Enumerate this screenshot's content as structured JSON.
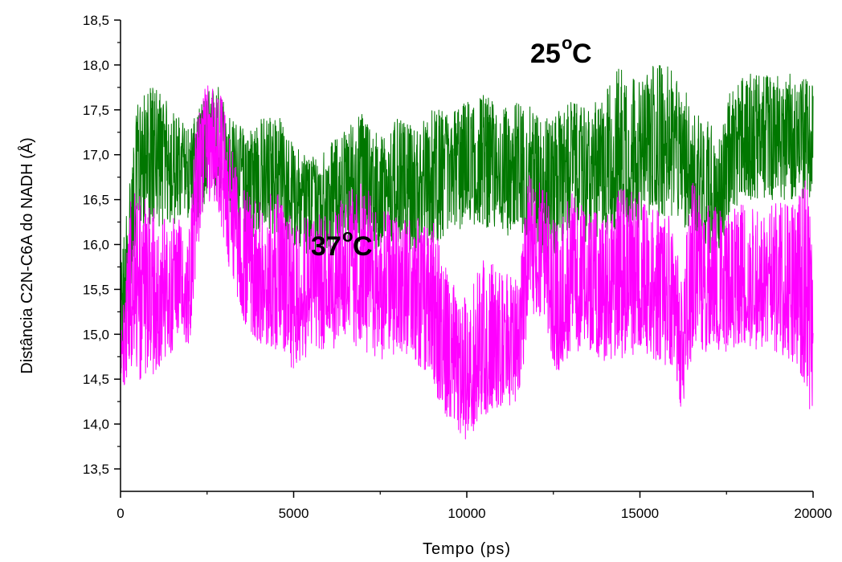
{
  "chart_data": {
    "type": "line",
    "xlabel": "Tempo (ps)",
    "ylabel": "Distância C2N-C6A do NADH (Å)",
    "xlim": [
      0,
      20000
    ],
    "ylim": [
      13.25,
      18.5
    ],
    "x_ticks": [
      0,
      5000,
      10000,
      15000,
      20000
    ],
    "x_tick_labels": [
      "0",
      "5000",
      "10000",
      "15000",
      "20000"
    ],
    "y_ticks": [
      13.5,
      14.0,
      14.5,
      15.0,
      15.5,
      16.0,
      16.5,
      17.0,
      17.5,
      18.0,
      18.5
    ],
    "y_tick_labels": [
      "13,5",
      "14,0",
      "14,5",
      "15,0",
      "15,5",
      "16,0",
      "16,5",
      "17,0",
      "17,5",
      "18,0",
      "18,5"
    ],
    "grid": false,
    "legend": "none",
    "annotations": [
      {
        "text": "25",
        "sup": "o",
        "unit": "C",
        "series": "25°C"
      },
      {
        "text": "37",
        "sup": "o",
        "unit": "C",
        "series": "37°C"
      }
    ],
    "series": [
      {
        "name": "25°C",
        "color": "#007700",
        "x": [
          0,
          500,
          1000,
          1500,
          2000,
          2500,
          2800,
          3200,
          3600,
          4000,
          4500,
          5000,
          5500,
          6000,
          6500,
          7000,
          7500,
          8000,
          8500,
          9000,
          9500,
          10000,
          10500,
          11000,
          11500,
          12000,
          12400,
          13000,
          13500,
          14000,
          14500,
          15000,
          15500,
          16000,
          16500,
          17000,
          17300,
          17600,
          18000,
          18500,
          19000,
          19500,
          20000
        ],
        "mean": [
          15.0,
          16.9,
          17.0,
          16.9,
          16.9,
          17.2,
          17.3,
          16.9,
          16.7,
          16.8,
          16.8,
          16.6,
          16.5,
          16.6,
          16.7,
          16.7,
          16.6,
          16.7,
          16.6,
          16.7,
          16.9,
          16.9,
          17.0,
          16.8,
          16.9,
          16.8,
          16.8,
          16.9,
          16.8,
          16.9,
          17.0,
          16.9,
          17.1,
          17.0,
          16.8,
          16.6,
          16.3,
          17.0,
          17.3,
          17.2,
          17.2,
          17.2,
          17.2
        ],
        "min": [
          14.5,
          16.2,
          16.2,
          16.2,
          16.3,
          16.3,
          16.5,
          16.2,
          16.0,
          16.1,
          16.1,
          16.0,
          15.8,
          15.9,
          16.0,
          16.0,
          15.9,
          16.0,
          15.9,
          16.0,
          16.1,
          16.2,
          16.2,
          16.1,
          16.1,
          16.0,
          15.7,
          16.2,
          16.0,
          16.1,
          16.2,
          16.1,
          16.3,
          16.3,
          16.1,
          15.9,
          15.9,
          16.2,
          16.5,
          16.5,
          16.5,
          16.5,
          16.5
        ],
        "max": [
          15.8,
          17.6,
          17.8,
          17.5,
          17.3,
          17.7,
          17.8,
          17.4,
          17.3,
          17.4,
          17.5,
          17.1,
          17.0,
          17.1,
          17.3,
          17.5,
          17.2,
          17.4,
          17.3,
          17.5,
          17.5,
          17.6,
          17.7,
          17.5,
          17.6,
          17.5,
          17.4,
          17.6,
          17.5,
          17.7,
          18.1,
          17.8,
          18.1,
          17.9,
          17.6,
          17.4,
          17.2,
          17.7,
          17.9,
          17.9,
          17.9,
          17.9,
          17.8
        ]
      },
      {
        "name": "37°C",
        "color": "#ff00ff",
        "x": [
          0,
          300,
          800,
          1200,
          1600,
          2000,
          2200,
          2500,
          2800,
          3200,
          3600,
          4000,
          4500,
          5000,
          5500,
          6000,
          6500,
          7000,
          7500,
          8000,
          8500,
          9000,
          9500,
          10000,
          10500,
          11000,
          11500,
          11800,
          12200,
          12600,
          13000,
          13500,
          14000,
          14500,
          15000,
          15500,
          16000,
          16200,
          16500,
          17000,
          17500,
          18000,
          18500,
          19000,
          19500,
          19800,
          20000
        ],
        "mean": [
          14.6,
          15.4,
          15.5,
          15.6,
          15.6,
          15.5,
          16.8,
          17.2,
          17.1,
          16.4,
          15.8,
          15.6,
          15.6,
          15.4,
          15.6,
          15.5,
          15.7,
          15.6,
          15.5,
          15.6,
          15.5,
          15.4,
          14.6,
          14.4,
          14.8,
          14.9,
          14.9,
          16.1,
          16.0,
          15.2,
          15.6,
          15.5,
          15.4,
          15.5,
          15.6,
          15.4,
          15.3,
          14.7,
          15.5,
          15.6,
          15.5,
          15.6,
          15.6,
          15.5,
          15.5,
          15.3,
          15.0
        ],
        "min": [
          14.3,
          14.6,
          14.4,
          14.7,
          14.8,
          14.9,
          15.8,
          16.5,
          16.4,
          15.6,
          15.1,
          14.9,
          14.8,
          14.6,
          14.8,
          14.8,
          14.9,
          14.8,
          14.7,
          14.8,
          14.7,
          14.4,
          14.0,
          13.75,
          14.1,
          14.2,
          14.2,
          15.2,
          15.2,
          14.5,
          14.8,
          14.8,
          14.7,
          14.7,
          14.8,
          14.7,
          14.6,
          14.1,
          14.7,
          14.8,
          14.8,
          14.9,
          14.8,
          14.8,
          14.6,
          14.4,
          13.85
        ],
        "max": [
          14.9,
          16.6,
          16.5,
          16.3,
          16.3,
          16.2,
          17.5,
          17.8,
          17.9,
          17.1,
          16.6,
          16.5,
          16.6,
          16.4,
          16.4,
          16.3,
          16.6,
          16.7,
          16.4,
          16.4,
          16.3,
          16.3,
          15.6,
          15.4,
          15.9,
          15.7,
          15.6,
          16.8,
          16.7,
          16.4,
          16.6,
          16.4,
          16.3,
          16.7,
          16.6,
          16.4,
          16.3,
          15.6,
          16.8,
          16.5,
          16.4,
          16.6,
          16.4,
          16.5,
          16.5,
          16.8,
          15.9
        ]
      }
    ]
  }
}
